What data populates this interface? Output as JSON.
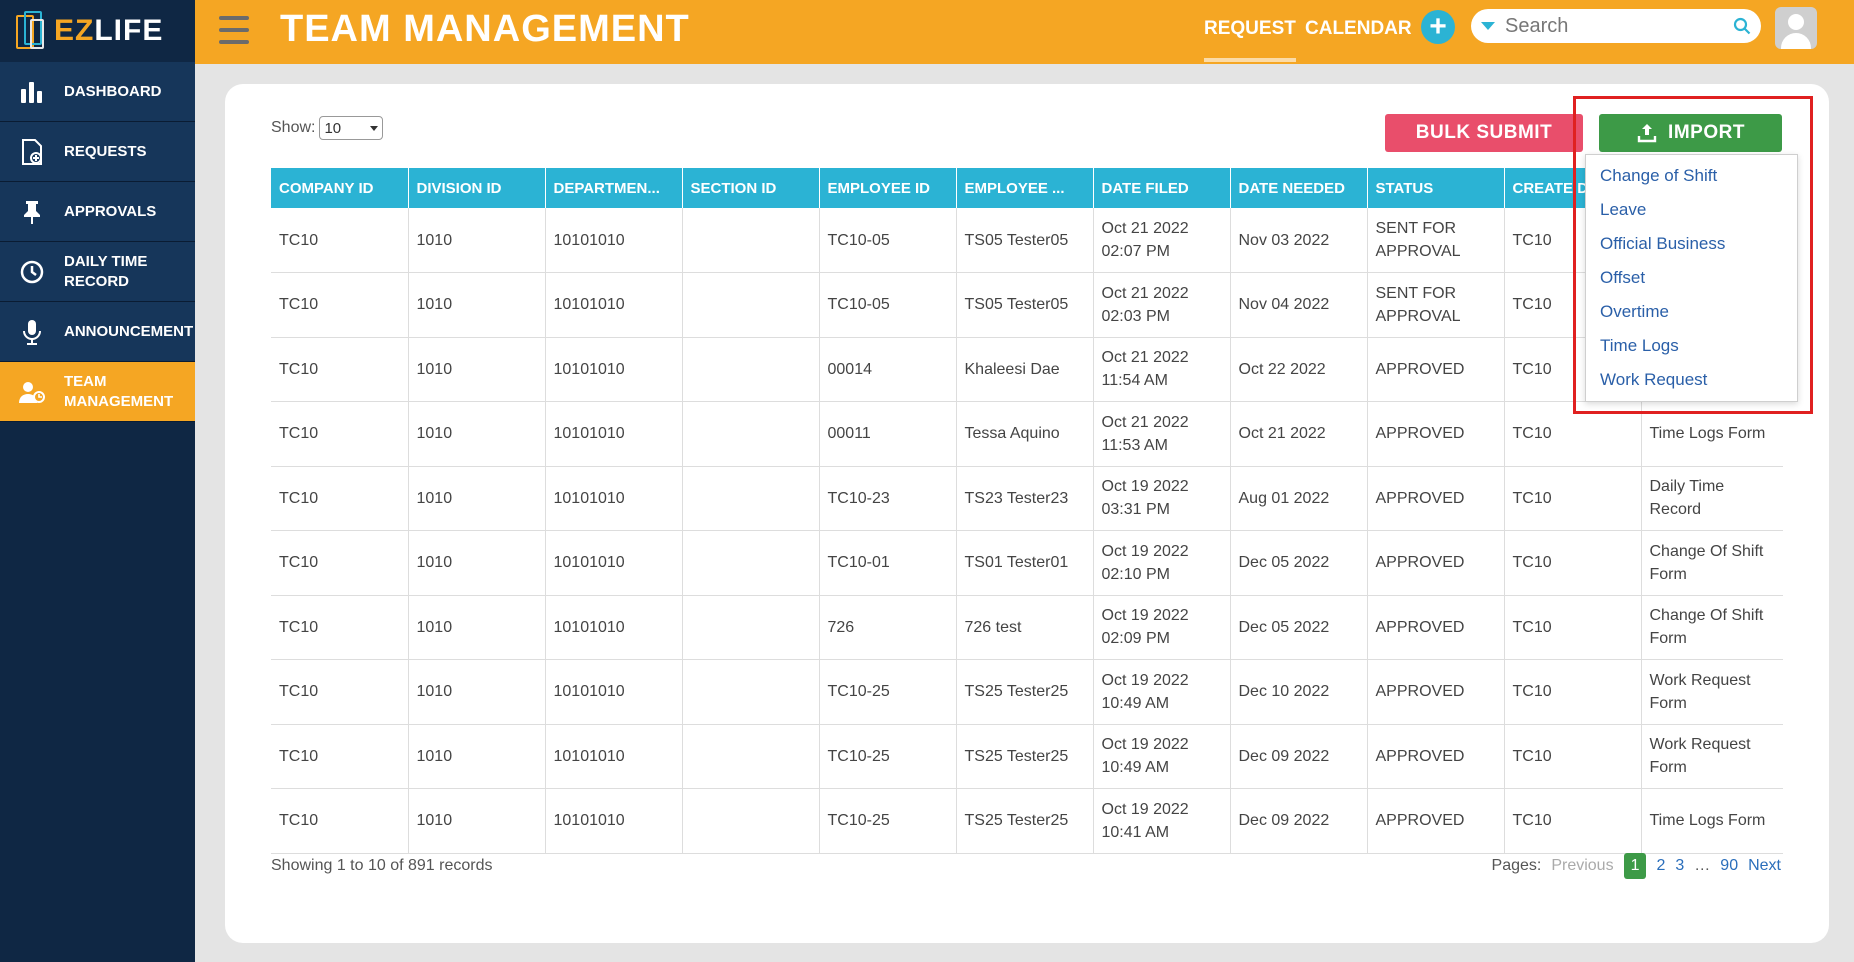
{
  "app": {
    "logo_ez": "EZ",
    "logo_life": "LIFE"
  },
  "sidebar": {
    "items": [
      {
        "label": "DASHBOARD",
        "icon": "bar-chart-icon"
      },
      {
        "label": "REQUESTS",
        "icon": "document-icon"
      },
      {
        "label": "APPROVALS",
        "icon": "pin-icon"
      },
      {
        "label": "DAILY TIME RECORD",
        "icon": "clock-icon"
      },
      {
        "label": "ANNOUNCEMENT",
        "icon": "microphone-icon"
      },
      {
        "label": "TEAM MANAGEMENT",
        "icon": "team-icon",
        "active": true
      }
    ]
  },
  "header": {
    "title": "TEAM MANAGEMENT",
    "nav_request": "REQUEST",
    "nav_calendar": "CALENDAR",
    "search_placeholder": "Search"
  },
  "controls": {
    "show_label": "Show:",
    "show_value": "10",
    "bulk_submit": "BULK SUBMIT",
    "import": "IMPORT"
  },
  "table": {
    "columns": [
      "COMPANY ID",
      "DIVISION ID",
      "DEPARTMEN...",
      "SECTION ID",
      "EMPLOYEE ID",
      "EMPLOYEE ...",
      "DATE FILED",
      "DATE NEEDED",
      "STATUS",
      "CREATE D",
      ""
    ],
    "rows": [
      [
        "TC10",
        "1010",
        "10101010",
        "",
        "TC10-05",
        "TS05 Tester05",
        "Oct 21 2022 02:07 PM",
        "Nov 03 2022",
        "SENT FOR APPROVAL",
        "TC10",
        ""
      ],
      [
        "TC10",
        "1010",
        "10101010",
        "",
        "TC10-05",
        "TS05 Tester05",
        "Oct 21 2022 02:03 PM",
        "Nov 04 2022",
        "SENT FOR APPROVAL",
        "TC10",
        ""
      ],
      [
        "TC10",
        "1010",
        "10101010",
        "",
        "00014",
        "Khaleesi Dae",
        "Oct 21 2022 11:54 AM",
        "Oct 22 2022",
        "APPROVED",
        "TC10",
        ""
      ],
      [
        "TC10",
        "1010",
        "10101010",
        "",
        "00011",
        "Tessa Aquino",
        "Oct 21 2022 11:53 AM",
        "Oct 21 2022",
        "APPROVED",
        "TC10",
        "Time Logs Form"
      ],
      [
        "TC10",
        "1010",
        "10101010",
        "",
        "TC10-23",
        "TS23 Tester23",
        "Oct 19 2022 03:31 PM",
        "Aug 01 2022",
        "APPROVED",
        "TC10",
        "Daily Time Record"
      ],
      [
        "TC10",
        "1010",
        "10101010",
        "",
        "TC10-01",
        "TS01 Tester01",
        "Oct 19 2022 02:10 PM",
        "Dec 05 2022",
        "APPROVED",
        "TC10",
        "Change Of Shift Form"
      ],
      [
        "TC10",
        "1010",
        "10101010",
        "",
        "726",
        "726 test",
        "Oct 19 2022 02:09 PM",
        "Dec 05 2022",
        "APPROVED",
        "TC10",
        "Change Of Shift Form"
      ],
      [
        "TC10",
        "1010",
        "10101010",
        "",
        "TC10-25",
        "TS25 Tester25",
        "Oct 19 2022 10:49 AM",
        "Dec 10 2022",
        "APPROVED",
        "TC10",
        "Work Request Form"
      ],
      [
        "TC10",
        "1010",
        "10101010",
        "",
        "TC10-25",
        "TS25 Tester25",
        "Oct 19 2022 10:49 AM",
        "Dec 09 2022",
        "APPROVED",
        "TC10",
        "Work Request Form"
      ],
      [
        "TC10",
        "1010",
        "10101010",
        "",
        "TC10-25",
        "TS25 Tester25",
        "Oct 19 2022 10:41 AM",
        "Dec 09 2022",
        "APPROVED",
        "TC10",
        "Time Logs Form"
      ]
    ]
  },
  "footer": {
    "info": "Showing 1 to 10 of 891 records",
    "pages_label": "Pages:",
    "previous": "Previous",
    "pages": [
      "1",
      "2",
      "3",
      "…",
      "90"
    ],
    "next": "Next"
  },
  "import_menu": {
    "options": [
      "Change of Shift",
      "Leave",
      "Official Business",
      "Offset",
      "Overtime",
      "Time Logs",
      "Work Request"
    ]
  },
  "colors": {
    "accent": "#f5a623",
    "sidebar": "#0f2744",
    "table_header": "#2bb3d4",
    "import": "#3d9a47",
    "bulk": "#e94e6b"
  }
}
